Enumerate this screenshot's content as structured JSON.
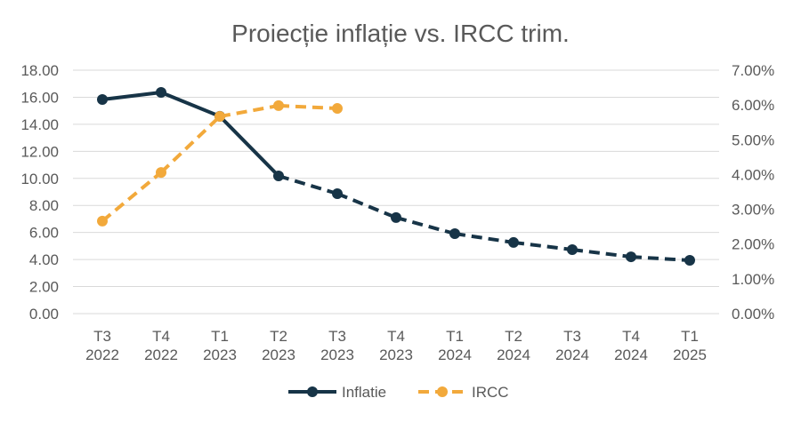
{
  "chart_data": {
    "type": "line",
    "title": "Proiecție inflație vs. IRCC trim.",
    "categories": [
      [
        "T3",
        "2022"
      ],
      [
        "T4",
        "2022"
      ],
      [
        "T1",
        "2023"
      ],
      [
        "T2",
        "2023"
      ],
      [
        "T3",
        "2023"
      ],
      [
        "T4",
        "2023"
      ],
      [
        "T1",
        "2024"
      ],
      [
        "T2",
        "2024"
      ],
      [
        "T3",
        "2024"
      ],
      [
        "T4",
        "2024"
      ],
      [
        "T1",
        "2025"
      ]
    ],
    "y_left": {
      "range": [
        0,
        18
      ],
      "ticks": [
        "0.00",
        "2.00",
        "4.00",
        "6.00",
        "8.00",
        "10.00",
        "12.00",
        "14.00",
        "16.00",
        "18.00"
      ]
    },
    "y_right": {
      "range": [
        0,
        7
      ],
      "ticks": [
        "0.00%",
        "1.00%",
        "2.00%",
        "3.00%",
        "4.00%",
        "5.00%",
        "6.00%",
        "7.00%"
      ]
    },
    "grid": true,
    "legend_placement": "bottom",
    "series": [
      {
        "name": "Inflatie",
        "axis": "left",
        "color": "#173447",
        "values": [
          15.83,
          16.36,
          14.59,
          10.18,
          8.87,
          7.1,
          5.91,
          5.26,
          4.73,
          4.2,
          3.94
        ],
        "solid_through_index": 3,
        "style_after": "dashed"
      },
      {
        "name": "IRCC",
        "axis": "right",
        "color": "#F2A93B",
        "style": "dashed",
        "values": [
          2.66,
          4.06,
          5.67,
          5.98,
          5.9,
          null,
          null,
          null,
          null,
          null,
          null
        ]
      }
    ]
  }
}
